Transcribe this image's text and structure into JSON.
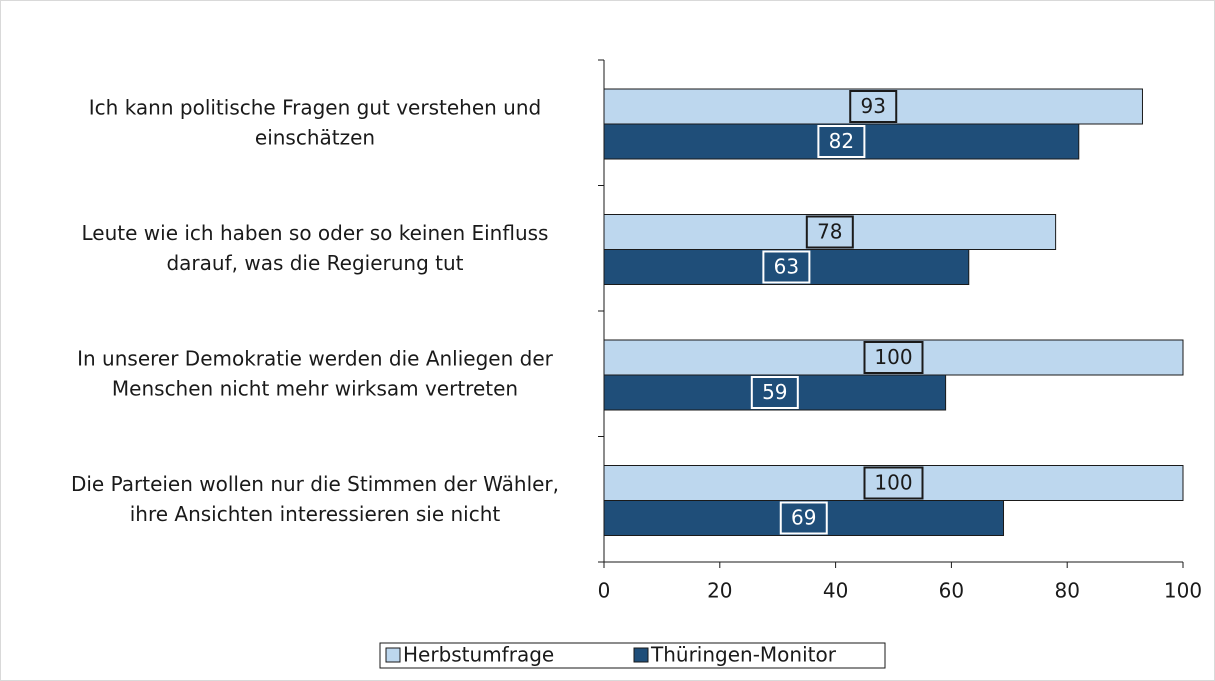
{
  "chart_data": {
    "type": "bar",
    "orientation": "horizontal",
    "categories": [
      [
        "Ich kann politische Fragen gut verstehen und",
        "einschätzen"
      ],
      [
        "Leute wie ich haben so oder so keinen Einfluss",
        "darauf, was die Regierung tut"
      ],
      [
        "In unserer Demokratie werden die Anliegen der",
        "Menschen nicht mehr wirksam vertreten"
      ],
      [
        "Die Parteien wollen nur die Stimmen der Wähler,",
        "ihre Ansichten interessieren sie nicht"
      ]
    ],
    "series": [
      {
        "name": "Herbstumfrage",
        "color": "#bdd7ee",
        "values": [
          93,
          78,
          100,
          100
        ]
      },
      {
        "name": "Thüringen-Monitor",
        "color": "#1f4e79",
        "values": [
          82,
          63,
          59,
          69
        ]
      }
    ],
    "xlim": [
      0,
      100
    ],
    "xticks": [
      0,
      20,
      40,
      60,
      80,
      100
    ],
    "legend": "bottom"
  }
}
